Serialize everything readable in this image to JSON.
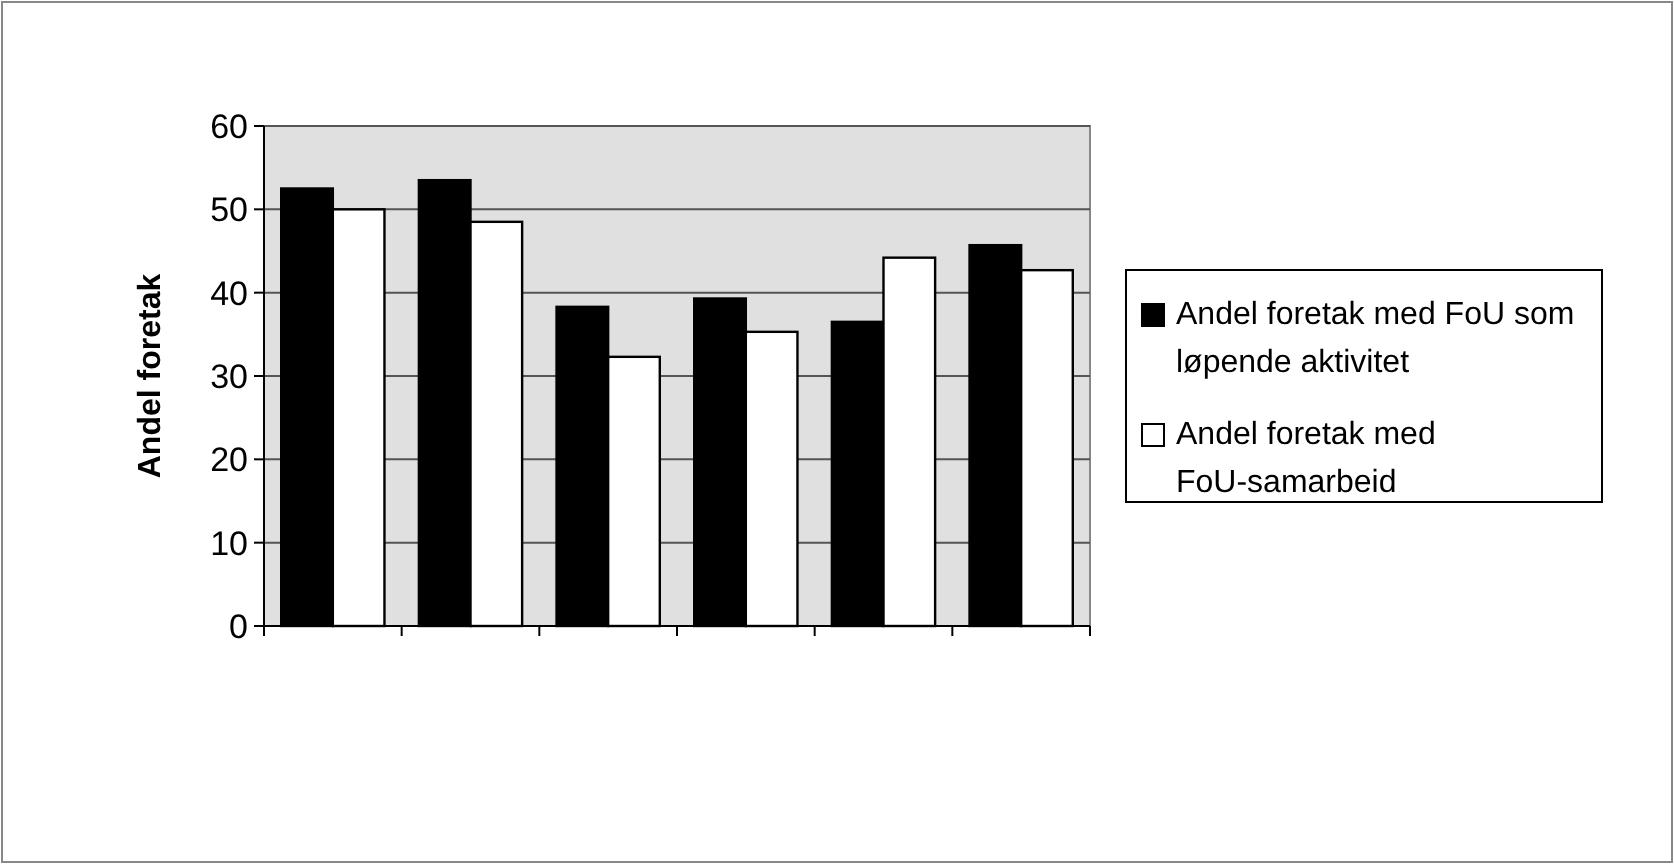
{
  "chart_data": {
    "type": "bar",
    "ylabel": "Andel foretak",
    "categories": [
      null,
      null,
      null,
      null,
      null,
      null
    ],
    "series": [
      {
        "name": "Andel foretak med FoU som løpende aktivitet",
        "color": "#000000",
        "values": [
          52.5,
          53.5,
          38.3,
          39.3,
          36.5,
          45.7
        ]
      },
      {
        "name": "Andel foretak med FoU-samarbeid",
        "color": "#ffffff",
        "values": [
          50,
          48.5,
          32.3,
          35.3,
          44.2,
          42.7
        ]
      }
    ],
    "ylim": [
      0,
      60
    ],
    "yticks": [
      0,
      10,
      20,
      30,
      40,
      50,
      60
    ],
    "grid": "y",
    "legend": "right"
  }
}
